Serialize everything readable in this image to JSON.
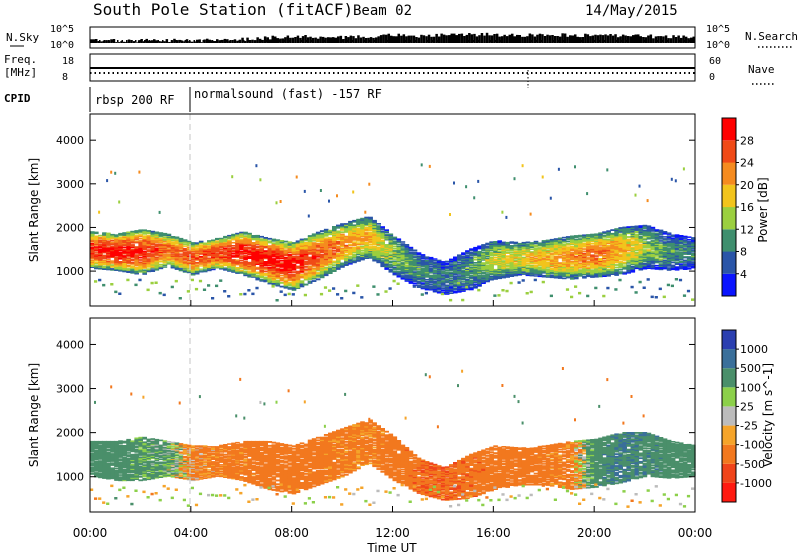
{
  "header": {
    "station": "South Pole Station (fitACF)",
    "beam": "Beam 02",
    "date": "14/May/2015"
  },
  "top_panels": {
    "nsky_label": "N.Sky",
    "nsky_ticks": [
      "10^5",
      "10^0"
    ],
    "nsearch_label": "N.Search",
    "nsearch_ticks": [
      "10^5",
      "10^0"
    ],
    "freq_label_1": "Freq.",
    "freq_label_2": "[MHz]",
    "freq_ticks": [
      "18",
      "8"
    ],
    "nave_label": "Nave",
    "nave_ticks": [
      "60",
      "0"
    ],
    "cpid_label": "CPID",
    "cpid_segments": [
      {
        "start_hour": 0,
        "end_hour": 4,
        "label": "rbsp 200 RF"
      },
      {
        "start_hour": 4,
        "end_hour": 24,
        "label": "normalsound (fast) -157 RF"
      }
    ]
  },
  "chart_data": [
    {
      "type": "heatmap",
      "parameter": "power",
      "xlabel": "",
      "ylabel": "Slant Range [km]",
      "x_units": "hours UT",
      "xlim": [
        0,
        24
      ],
      "ylim": [
        200,
        4600
      ],
      "yticks": [
        "1000",
        "2000",
        "3000",
        "4000"
      ],
      "colorbar": {
        "label": "Power [dB]",
        "ticks": [
          "4",
          "8",
          "12",
          "16",
          "20",
          "24",
          "28"
        ],
        "range": [
          0,
          32
        ],
        "colors": [
          "#0a14ff",
          "#2a55a8",
          "#3f8f6e",
          "#9bcf3f",
          "#f2c41c",
          "#f58b1f",
          "#f04a17",
          "#ff0000"
        ]
      },
      "echo_region": [
        {
          "hour": 0,
          "lower_km": 1050,
          "upper_km": 1900
        },
        {
          "hour": 1,
          "lower_km": 1000,
          "upper_km": 1850
        },
        {
          "hour": 2,
          "lower_km": 900,
          "upper_km": 1950
        },
        {
          "hour": 3,
          "lower_km": 1100,
          "upper_km": 1850
        },
        {
          "hour": 4,
          "lower_km": 900,
          "upper_km": 1650
        },
        {
          "hour": 5,
          "lower_km": 1050,
          "upper_km": 1750
        },
        {
          "hour": 6,
          "lower_km": 900,
          "upper_km": 1900
        },
        {
          "hour": 7,
          "lower_km": 700,
          "upper_km": 1750
        },
        {
          "hour": 8,
          "lower_km": 550,
          "upper_km": 1650
        },
        {
          "hour": 9,
          "lower_km": 800,
          "upper_km": 1900
        },
        {
          "hour": 10,
          "lower_km": 1100,
          "upper_km": 2100
        },
        {
          "hour": 11,
          "lower_km": 1300,
          "upper_km": 2250
        },
        {
          "hour": 12,
          "lower_km": 900,
          "upper_km": 1800
        },
        {
          "hour": 13,
          "lower_km": 600,
          "upper_km": 1400
        },
        {
          "hour": 14,
          "lower_km": 450,
          "upper_km": 1200
        },
        {
          "hour": 15,
          "lower_km": 550,
          "upper_km": 1500
        },
        {
          "hour": 16,
          "lower_km": 800,
          "upper_km": 1700
        },
        {
          "hour": 17,
          "lower_km": 900,
          "upper_km": 1650
        },
        {
          "hour": 18,
          "lower_km": 850,
          "upper_km": 1700
        },
        {
          "hour": 19,
          "lower_km": 800,
          "upper_km": 1800
        },
        {
          "hour": 20,
          "lower_km": 850,
          "upper_km": 1850
        },
        {
          "hour": 21,
          "lower_km": 900,
          "upper_km": 2000
        },
        {
          "hour": 22,
          "lower_km": 1050,
          "upper_km": 2050
        },
        {
          "hour": 23,
          "lower_km": 1000,
          "upper_km": 1850
        },
        {
          "hour": 24,
          "lower_km": 1050,
          "upper_km": 1750
        }
      ],
      "peak_value_by_hour": [
        28,
        30,
        29,
        24,
        26,
        27,
        30,
        30,
        30,
        26,
        22,
        20,
        14,
        10,
        8,
        10,
        16,
        18,
        20,
        22,
        24,
        20,
        14,
        10,
        10
      ]
    },
    {
      "type": "heatmap",
      "parameter": "velocity",
      "xlabel": "Time UT",
      "ylabel": "Slant Range [km]",
      "x_units": "hours UT",
      "xlim": [
        0,
        24
      ],
      "ylim": [
        200,
        4600
      ],
      "xticks": [
        "00:00",
        "04:00",
        "08:00",
        "12:00",
        "16:00",
        "20:00",
        "00:00"
      ],
      "yticks": [
        "1000",
        "2000",
        "3000",
        "4000"
      ],
      "colorbar": {
        "label": "Velocity [m s^-1]",
        "ticks": [
          "1000",
          "500",
          "100",
          "25",
          "-25",
          "-100",
          "-500",
          "-1000"
        ],
        "colors": [
          "#2b3fb0",
          "#3a6f9a",
          "#4a8f6a",
          "#8cd04a",
          "#bcbcbc",
          "#f5a42a",
          "#f2781e",
          "#f0441a",
          "#ff1a10"
        ]
      },
      "echo_region": [
        {
          "hour": 0,
          "lower_km": 1000,
          "upper_km": 1800
        },
        {
          "hour": 1,
          "lower_km": 900,
          "upper_km": 1800
        },
        {
          "hour": 2,
          "lower_km": 900,
          "upper_km": 1900
        },
        {
          "hour": 3,
          "lower_km": 1000,
          "upper_km": 1800
        },
        {
          "hour": 4,
          "lower_km": 900,
          "upper_km": 1700
        },
        {
          "hour": 5,
          "lower_km": 1000,
          "upper_km": 1700
        },
        {
          "hour": 6,
          "lower_km": 900,
          "upper_km": 1800
        },
        {
          "hour": 7,
          "lower_km": 700,
          "upper_km": 1800
        },
        {
          "hour": 8,
          "lower_km": 600,
          "upper_km": 1700
        },
        {
          "hour": 9,
          "lower_km": 800,
          "upper_km": 1900
        },
        {
          "hour": 10,
          "lower_km": 1000,
          "upper_km": 2100
        },
        {
          "hour": 11,
          "lower_km": 1300,
          "upper_km": 2300
        },
        {
          "hour": 12,
          "lower_km": 900,
          "upper_km": 1900
        },
        {
          "hour": 13,
          "lower_km": 600,
          "upper_km": 1400
        },
        {
          "hour": 14,
          "lower_km": 450,
          "upper_km": 1200
        },
        {
          "hour": 15,
          "lower_km": 500,
          "upper_km": 1500
        },
        {
          "hour": 16,
          "lower_km": 700,
          "upper_km": 1700
        },
        {
          "hour": 17,
          "lower_km": 800,
          "upper_km": 1650
        },
        {
          "hour": 18,
          "lower_km": 800,
          "upper_km": 1700
        },
        {
          "hour": 19,
          "lower_km": 700,
          "upper_km": 1800
        },
        {
          "hour": 20,
          "lower_km": 750,
          "upper_km": 1850
        },
        {
          "hour": 21,
          "lower_km": 850,
          "upper_km": 2000
        },
        {
          "hour": 22,
          "lower_km": 1000,
          "upper_km": 2000
        },
        {
          "hour": 23,
          "lower_km": 950,
          "upper_km": 1800
        },
        {
          "hour": 24,
          "lower_km": 1000,
          "upper_km": 1700
        }
      ],
      "dominant_velocity_by_hour": [
        300,
        300,
        200,
        150,
        -150,
        -200,
        -250,
        -300,
        -300,
        -250,
        -200,
        -200,
        -300,
        -400,
        -450,
        -400,
        -300,
        -300,
        -250,
        -200,
        300,
        500,
        400,
        300,
        300
      ]
    }
  ],
  "nsky_profile": [
    1,
    1,
    1,
    1,
    1,
    1.2,
    1.6,
    2.2,
    2.6,
    2.6,
    2.4,
    2.8,
    3.2,
    3.0,
    3.2,
    3.6,
    3.4,
    3.2,
    3.4,
    3.2,
    3.0,
    3.0,
    2.8,
    2.6,
    2.4
  ]
}
